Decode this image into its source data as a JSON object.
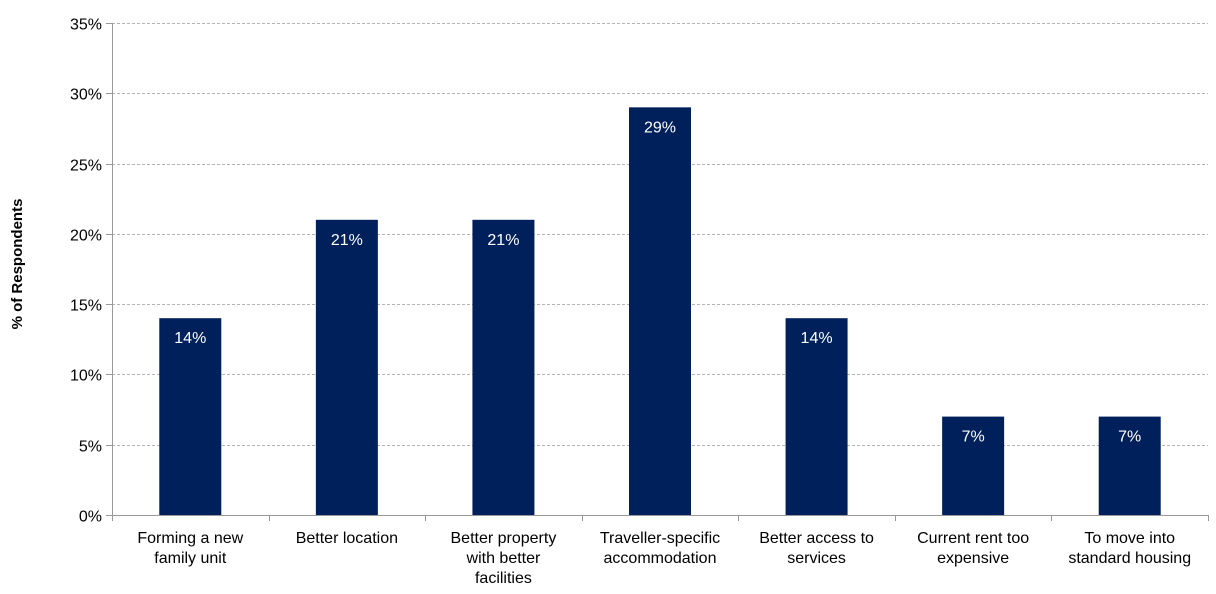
{
  "chart_data": {
    "type": "bar",
    "title": "",
    "xlabel": "",
    "ylabel": "% of Respondents",
    "categories": [
      [
        "Forming a new",
        "family unit"
      ],
      [
        "Better location"
      ],
      [
        "Better property",
        "with better",
        "facilities"
      ],
      [
        "Traveller-specific",
        "accommodation"
      ],
      [
        "Better access to",
        "services"
      ],
      [
        "Current rent too",
        "expensive"
      ],
      [
        "To move into",
        "standard housing"
      ]
    ],
    "values": [
      14,
      21,
      21,
      29,
      14,
      7,
      7
    ],
    "data_labels": [
      "14%",
      "21%",
      "21%",
      "29%",
      "14%",
      "7%",
      "7%"
    ],
    "ylim": [
      0,
      35
    ],
    "yticks": [
      0,
      5,
      10,
      15,
      20,
      25,
      30,
      35
    ],
    "ytick_labels": [
      "0%",
      "5%",
      "10%",
      "15%",
      "20%",
      "25%",
      "30%",
      "35%"
    ],
    "grid": true,
    "bar_color": "#00205b",
    "grid_color": "#b3b3b3",
    "axis_color": "#999999"
  }
}
